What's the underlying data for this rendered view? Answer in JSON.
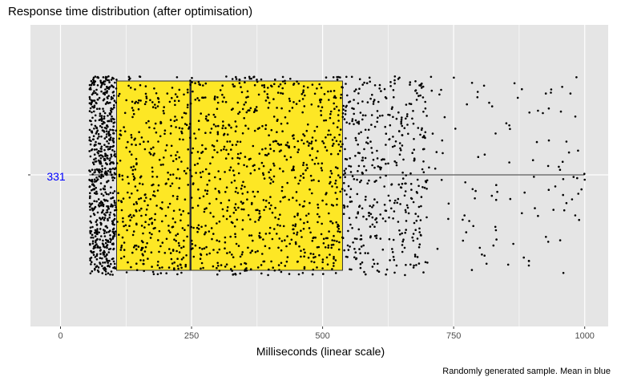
{
  "chart_data": {
    "type": "boxplot-jitter",
    "title": "Response time distribution (after optimisation)",
    "xlabel": "Milliseconds (linear scale)",
    "caption": "Randomly generated sample. Mean in blue",
    "xlim": [
      -60,
      1010
    ],
    "x_ticks": [
      0,
      250,
      500,
      750,
      1000
    ],
    "x_tick_labels": [
      "0",
      "250",
      "500",
      "750",
      "1000"
    ],
    "grid": true,
    "box": {
      "min": 55,
      "q1": 107,
      "median": 248,
      "q3": 538,
      "max": 1000,
      "mean": 331,
      "mean_label": "331"
    },
    "colors": {
      "panel_background": "#e5e5e5",
      "grid": "#ffffff",
      "box_fill": "#fde725",
      "box_outline": "#333333",
      "points": "#000000",
      "mean": "#0000ff"
    },
    "points": {
      "description_segments": [
        {
          "from": 55,
          "to": 105,
          "count": 650
        },
        {
          "from": 105,
          "to": 540,
          "count": 1150
        },
        {
          "from": 540,
          "to": 700,
          "count": 420
        },
        {
          "from": 700,
          "to": 1000,
          "count": 110
        }
      ]
    }
  }
}
